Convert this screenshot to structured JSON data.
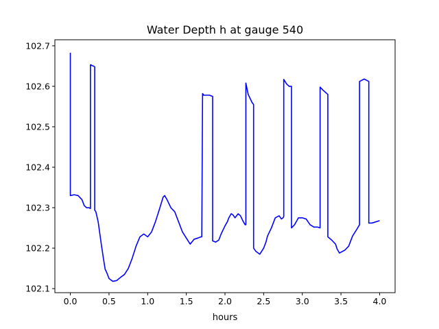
{
  "chart_data": {
    "type": "line",
    "title": "Water Depth h at gauge 540",
    "xlabel": "hours",
    "ylabel": "",
    "xlim": [
      -0.2,
      4.2
    ],
    "ylim": [
      102.09,
      102.715
    ],
    "x_ticks": [
      0.0,
      0.5,
      1.0,
      1.5,
      2.0,
      2.5,
      3.0,
      3.5,
      4.0
    ],
    "x_tick_labels": [
      "0.0",
      "0.5",
      "1.0",
      "1.5",
      "2.0",
      "2.5",
      "3.0",
      "3.5",
      "4.0"
    ],
    "y_ticks": [
      102.1,
      102.2,
      102.3,
      102.4,
      102.5,
      102.6,
      102.7
    ],
    "y_tick_labels": [
      "102.1",
      "102.2",
      "102.3",
      "102.4",
      "102.5",
      "102.6",
      "102.7"
    ],
    "grid": false,
    "line_color": "#0000ff",
    "series": [
      {
        "x": [
          0.0,
          0.0,
          0.05,
          0.1,
          0.15,
          0.18,
          0.21,
          0.24,
          0.26,
          0.26,
          0.27,
          0.27,
          0.3,
          0.315,
          0.315,
          0.33,
          0.36,
          0.4,
          0.43,
          0.45,
          0.47,
          0.5,
          0.55,
          0.6,
          0.65,
          0.7,
          0.75,
          0.8,
          0.85,
          0.9,
          0.95,
          1.0,
          1.05,
          1.1,
          1.15,
          1.2,
          1.22,
          1.25,
          1.3,
          1.35,
          1.4,
          1.45,
          1.5,
          1.55,
          1.6,
          1.65,
          1.69,
          1.7,
          1.71,
          1.72,
          1.72,
          1.75,
          1.8,
          1.84,
          1.84,
          1.88,
          1.92,
          1.95,
          2.0,
          2.03,
          2.05,
          2.08,
          2.1,
          2.13,
          2.17,
          2.2,
          2.23,
          2.26,
          2.27,
          2.27,
          2.3,
          2.35,
          2.37,
          2.37,
          2.4,
          2.45,
          2.5,
          2.53,
          2.55,
          2.6,
          2.65,
          2.7,
          2.73,
          2.75,
          2.76,
          2.76,
          2.8,
          2.83,
          2.86,
          2.86,
          2.9,
          2.95,
          3.0,
          3.05,
          3.1,
          3.15,
          3.2,
          3.23,
          3.23,
          3.27,
          3.3,
          3.33,
          3.33,
          3.38,
          3.43,
          3.45,
          3.48,
          3.5,
          3.55,
          3.6,
          3.65,
          3.7,
          3.74,
          3.74,
          3.77,
          3.8,
          3.83,
          3.86,
          3.86,
          3.9,
          3.95,
          4.0
        ],
        "y": [
          102.683,
          102.33,
          102.332,
          102.33,
          102.32,
          102.305,
          102.3,
          102.3,
          102.298,
          102.653,
          102.653,
          102.652,
          102.65,
          102.648,
          102.294,
          102.29,
          102.265,
          102.21,
          102.172,
          102.148,
          102.14,
          102.125,
          102.118,
          102.12,
          102.128,
          102.135,
          102.15,
          102.175,
          102.205,
          102.228,
          102.235,
          102.228,
          102.24,
          102.265,
          102.295,
          102.326,
          102.33,
          102.32,
          102.3,
          102.29,
          102.265,
          102.24,
          102.225,
          102.21,
          102.222,
          102.225,
          102.228,
          102.228,
          102.582,
          102.58,
          102.578,
          102.578,
          102.578,
          102.575,
          102.218,
          102.215,
          102.22,
          102.235,
          102.255,
          102.265,
          102.275,
          102.285,
          102.283,
          102.275,
          102.285,
          102.28,
          102.268,
          102.258,
          102.258,
          102.608,
          102.58,
          102.56,
          102.555,
          102.2,
          102.192,
          102.185,
          102.2,
          102.215,
          102.23,
          102.25,
          102.275,
          102.28,
          102.272,
          102.275,
          102.278,
          102.617,
          102.605,
          102.6,
          102.6,
          102.25,
          102.258,
          102.275,
          102.275,
          102.272,
          102.258,
          102.252,
          102.252,
          102.25,
          102.598,
          102.59,
          102.585,
          102.58,
          102.228,
          102.22,
          102.21,
          102.198,
          102.188,
          102.19,
          102.195,
          102.205,
          102.23,
          102.245,
          102.258,
          102.612,
          102.615,
          102.618,
          102.615,
          102.612,
          102.262,
          102.262,
          102.265,
          102.268
        ]
      }
    ]
  }
}
